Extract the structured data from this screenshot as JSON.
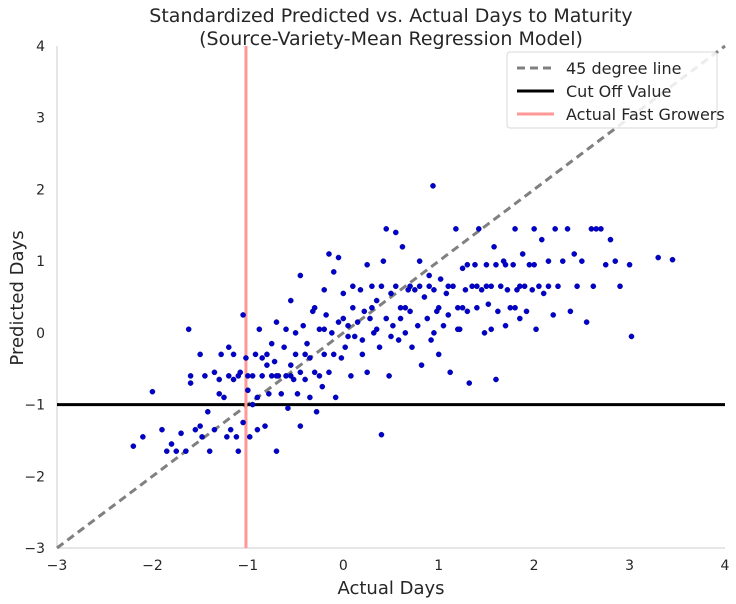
{
  "chart_data": {
    "type": "scatter",
    "title": "Standardized Predicted vs. Actual Days to Maturity",
    "subtitle": "(Source-Variety-Mean Regression Model)",
    "xlabel": "Actual Days",
    "ylabel": "Predicted Days",
    "xlim": [
      -3,
      4
    ],
    "ylim": [
      -3,
      4
    ],
    "x_ticks": [
      "−3",
      "−2",
      "−1",
      "0",
      "1",
      "2",
      "3",
      "4"
    ],
    "y_ticks": [
      "−3",
      "−2",
      "−1",
      "0",
      "1",
      "2",
      "3",
      "4"
    ],
    "grid": false,
    "legend_position": "top-right",
    "colors": {
      "points": "#0000c8",
      "diagonal": "#808080",
      "cutoff": "#000000",
      "fast": "#ff9896"
    },
    "lines": [
      {
        "name": "45 degree line",
        "style": "dashed",
        "x": [
          -3,
          4
        ],
        "y": [
          -3,
          4
        ]
      },
      {
        "name": "Cut Off Value",
        "style": "solid",
        "y": -1
      },
      {
        "name": "Actual Fast Growers",
        "style": "solid",
        "x": -1.02
      }
    ],
    "series": [
      {
        "name": "",
        "points": [
          [
            -2.2,
            -1.58
          ],
          [
            -2.1,
            -1.45
          ],
          [
            -2.0,
            -0.82
          ],
          [
            -1.9,
            -1.35
          ],
          [
            -1.85,
            -1.65
          ],
          [
            -1.8,
            -1.55
          ],
          [
            -1.75,
            -1.65
          ],
          [
            -1.7,
            -1.4
          ],
          [
            -1.65,
            -1.65
          ],
          [
            -1.62,
            0.05
          ],
          [
            -1.6,
            -0.6
          ],
          [
            -1.6,
            -0.7
          ],
          [
            -1.55,
            -1.35
          ],
          [
            -1.5,
            -1.3
          ],
          [
            -1.48,
            -1.45
          ],
          [
            -1.45,
            -0.6
          ],
          [
            -1.42,
            -1.1
          ],
          [
            -1.4,
            -1.65
          ],
          [
            -1.35,
            -1.35
          ],
          [
            -1.35,
            -0.55
          ],
          [
            -1.3,
            -0.65
          ],
          [
            -1.28,
            -0.3
          ],
          [
            -1.25,
            -0.9
          ],
          [
            -1.22,
            -1.45
          ],
          [
            -1.2,
            -0.2
          ],
          [
            -1.2,
            -0.6
          ],
          [
            -1.18,
            -1.35
          ],
          [
            -1.15,
            -0.65
          ],
          [
            -1.12,
            -1.45
          ],
          [
            -1.1,
            -1.65
          ],
          [
            -1.08,
            -0.55
          ],
          [
            -1.05,
            -1.25
          ],
          [
            -1.05,
            0.25
          ],
          [
            -1.02,
            -0.35
          ],
          [
            -1.0,
            -0.8
          ],
          [
            -0.98,
            -1.45
          ],
          [
            -0.95,
            -0.6
          ],
          [
            -0.95,
            -1.0
          ],
          [
            -0.92,
            -0.3
          ],
          [
            -0.9,
            -1.35
          ],
          [
            -0.9,
            -0.9
          ],
          [
            -0.88,
            0.05
          ],
          [
            -0.85,
            -0.6
          ],
          [
            -0.82,
            -1.3
          ],
          [
            -0.8,
            -0.3
          ],
          [
            -0.78,
            -0.85
          ],
          [
            -0.75,
            -0.6
          ],
          [
            -0.72,
            -0.4
          ],
          [
            -0.7,
            -1.65
          ],
          [
            -0.7,
            0.15
          ],
          [
            -0.68,
            -0.6
          ],
          [
            -0.65,
            -0.85
          ],
          [
            -0.62,
            -0.2
          ],
          [
            -0.6,
            -0.6
          ],
          [
            -0.58,
            -1.05
          ],
          [
            -0.55,
            -0.45
          ],
          [
            -0.55,
            0.45
          ],
          [
            -0.52,
            -0.65
          ],
          [
            -0.5,
            -0.3
          ],
          [
            -0.48,
            -0.85
          ],
          [
            -0.45,
            -0.55
          ],
          [
            -0.45,
            -1.3
          ],
          [
            -0.42,
            0.1
          ],
          [
            -0.4,
            -0.65
          ],
          [
            -0.38,
            -0.15
          ],
          [
            -0.35,
            -0.35
          ],
          [
            -0.35,
            -0.9
          ],
          [
            -0.32,
            0.3
          ],
          [
            -0.3,
            -0.55
          ],
          [
            -0.28,
            -1.1
          ],
          [
            -0.25,
            0.05
          ],
          [
            -0.22,
            -0.75
          ],
          [
            -0.2,
            0.6
          ],
          [
            -0.2,
            -0.3
          ],
          [
            -0.18,
            0.25
          ],
          [
            -0.15,
            -0.55
          ],
          [
            -0.12,
            0.0
          ],
          [
            -0.1,
            0.85
          ],
          [
            -0.08,
            -0.9
          ],
          [
            -0.05,
            0.15
          ],
          [
            -0.02,
            -0.35
          ],
          [
            0.0,
            0.55
          ],
          [
            0.02,
            -0.2
          ],
          [
            0.05,
            0.1
          ],
          [
            0.08,
            -0.6
          ],
          [
            0.1,
            0.35
          ],
          [
            0.12,
            -0.05
          ],
          [
            0.15,
            0.15
          ],
          [
            0.18,
            0.6
          ],
          [
            0.2,
            -0.1
          ],
          [
            0.22,
            0.3
          ],
          [
            0.25,
            -0.55
          ],
          [
            0.28,
            0.2
          ],
          [
            0.3,
            0.65
          ],
          [
            0.32,
            0.0
          ],
          [
            0.35,
            0.45
          ],
          [
            0.38,
            -0.2
          ],
          [
            0.4,
            -1.42
          ],
          [
            0.42,
            1.0
          ],
          [
            0.45,
            0.2
          ],
          [
            0.48,
            -0.6
          ],
          [
            0.5,
            0.55
          ],
          [
            0.52,
            0.1
          ],
          [
            0.55,
            0.65
          ],
          [
            0.58,
            -0.1
          ],
          [
            0.6,
            0.35
          ],
          [
            0.62,
            1.2
          ],
          [
            0.65,
            0.0
          ],
          [
            0.68,
            0.6
          ],
          [
            0.7,
            0.3
          ],
          [
            0.72,
            -0.2
          ],
          [
            0.75,
            0.6
          ],
          [
            0.78,
            0.1
          ],
          [
            0.8,
            1.0
          ],
          [
            0.82,
            -0.45
          ],
          [
            0.85,
            0.5
          ],
          [
            0.88,
            0.2
          ],
          [
            0.9,
            0.8
          ],
          [
            0.92,
            -0.1
          ],
          [
            0.94,
            2.05
          ],
          [
            0.95,
            0.6
          ],
          [
            0.98,
            0.3
          ],
          [
            1.0,
            -0.3
          ],
          [
            1.02,
            0.75
          ],
          [
            1.05,
            0.1
          ],
          [
            1.08,
            0.55
          ],
          [
            1.1,
            0.25
          ],
          [
            1.12,
            -0.55
          ],
          [
            1.15,
            0.65
          ],
          [
            1.18,
            1.45
          ],
          [
            1.2,
            0.35
          ],
          [
            1.22,
            0.05
          ],
          [
            1.25,
            0.9
          ],
          [
            1.28,
            0.6
          ],
          [
            1.3,
            0.3
          ],
          [
            1.32,
            -0.7
          ],
          [
            1.35,
            0.65
          ],
          [
            1.38,
            0.95
          ],
          [
            1.4,
            0.35
          ],
          [
            1.42,
            1.45
          ],
          [
            1.45,
            0.6
          ],
          [
            1.48,
            0.0
          ],
          [
            1.5,
            0.95
          ],
          [
            1.52,
            0.4
          ],
          [
            1.55,
            0.65
          ],
          [
            1.58,
            1.2
          ],
          [
            1.6,
            -0.65
          ],
          [
            1.62,
            0.3
          ],
          [
            1.65,
            0.65
          ],
          [
            1.68,
            1.0
          ],
          [
            1.7,
            0.1
          ],
          [
            1.72,
            0.6
          ],
          [
            1.75,
            0.35
          ],
          [
            1.78,
            0.95
          ],
          [
            1.8,
            1.45
          ],
          [
            1.82,
            0.6
          ],
          [
            1.85,
            0.2
          ],
          [
            1.88,
            1.1
          ],
          [
            1.9,
            0.65
          ],
          [
            1.92,
            0.3
          ],
          [
            1.95,
            0.95
          ],
          [
            1.98,
            0.6
          ],
          [
            2.0,
            1.45
          ],
          [
            2.02,
            0.05
          ],
          [
            2.05,
            0.65
          ],
          [
            2.08,
            1.3
          ],
          [
            2.1,
            0.55
          ],
          [
            2.15,
            1.0
          ],
          [
            2.2,
            0.25
          ],
          [
            2.22,
            1.45
          ],
          [
            2.25,
            0.65
          ],
          [
            2.3,
            1.0
          ],
          [
            2.35,
            1.45
          ],
          [
            2.38,
            0.3
          ],
          [
            2.42,
            1.1
          ],
          [
            2.45,
            0.65
          ],
          [
            2.5,
            1.0
          ],
          [
            2.55,
            0.15
          ],
          [
            2.6,
            1.45
          ],
          [
            2.62,
            0.65
          ],
          [
            2.65,
            1.45
          ],
          [
            2.7,
            1.45
          ],
          [
            2.75,
            0.95
          ],
          [
            2.8,
            1.3
          ],
          [
            2.85,
            1.0
          ],
          [
            2.9,
            0.65
          ],
          [
            3.0,
            0.95
          ],
          [
            3.02,
            -0.05
          ],
          [
            3.3,
            1.05
          ],
          [
            3.45,
            1.02
          ],
          [
            -1.5,
            -0.3
          ],
          [
            -1.3,
            -0.85
          ],
          [
            -1.15,
            -0.3
          ],
          [
            -1.0,
            -0.6
          ],
          [
            -0.85,
            -0.35
          ],
          [
            -0.7,
            -0.6
          ],
          [
            -0.55,
            -0.6
          ],
          [
            -0.4,
            -0.3
          ],
          [
            -0.25,
            -0.6
          ],
          [
            -0.1,
            -0.3
          ],
          [
            0.05,
            -0.05
          ],
          [
            0.2,
            -0.3
          ],
          [
            0.35,
            0.05
          ],
          [
            0.5,
            -0.05
          ],
          [
            0.65,
            0.35
          ],
          [
            0.8,
            0.65
          ],
          [
            0.95,
            0.0
          ],
          [
            1.1,
            0.65
          ],
          [
            1.25,
            0.35
          ],
          [
            1.4,
            0.65
          ],
          [
            1.55,
            0.05
          ],
          [
            1.7,
            0.95
          ],
          [
            1.85,
            0.65
          ],
          [
            2.0,
            0.95
          ],
          [
            2.15,
            0.65
          ],
          [
            -0.6,
            0.05
          ],
          [
            -0.3,
            0.35
          ],
          [
            0.0,
            0.2
          ],
          [
            0.3,
            0.35
          ],
          [
            0.6,
            0.2
          ],
          [
            0.9,
            0.65
          ],
          [
            1.2,
            0.05
          ],
          [
            1.5,
            0.65
          ],
          [
            1.8,
            0.35
          ],
          [
            -0.8,
            -0.45
          ],
          [
            -0.5,
            0.0
          ],
          [
            -0.2,
            0.05
          ],
          [
            0.1,
            0.65
          ],
          [
            0.4,
            0.65
          ],
          [
            0.7,
            0.65
          ],
          [
            1.0,
            0.35
          ],
          [
            1.3,
            0.95
          ],
          [
            1.6,
            0.95
          ],
          [
            -0.15,
            1.1
          ],
          [
            0.25,
            0.95
          ],
          [
            0.55,
            1.4
          ],
          [
            -0.45,
            0.8
          ],
          [
            -0.05,
            1.05
          ],
          [
            0.45,
            1.45
          ],
          [
            -0.75,
            -0.15
          ],
          [
            -1.1,
            -0.6
          ]
        ]
      }
    ]
  }
}
